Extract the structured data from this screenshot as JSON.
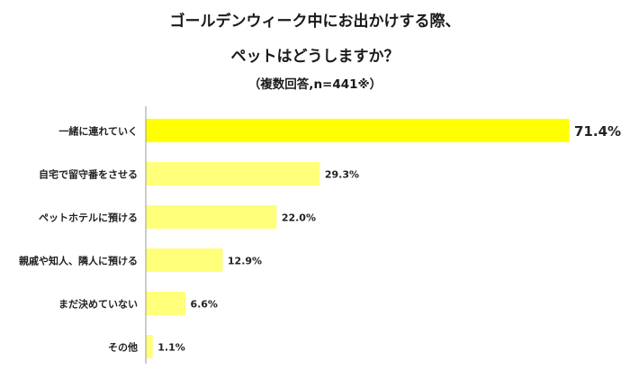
{
  "title_line1": "ゴールデンウィーク中にお出かけする際、",
  "title_line2": "ペットはどうしますか？",
  "subtitle": "（複数回答,n=441※）",
  "colors": {
    "top_bar": "#ffff00",
    "bar": "#ffff7a",
    "axis": "#999999",
    "text": "#222222"
  },
  "chart_data": {
    "type": "bar",
    "orientation": "horizontal",
    "title": "ゴールデンウィーク中にお出かけする際、ペットはどうしますか？",
    "subtitle": "（複数回答,n=441※）",
    "categories": [
      "一緒に連れていく",
      "自宅で留守番をさせる",
      "ペットホテルに預ける",
      "親戚や知人、隣人に預ける",
      "まだ決めていない",
      "その他"
    ],
    "values": [
      71.4,
      29.3,
      22.0,
      12.9,
      6.6,
      1.1
    ],
    "value_labels": [
      "71.4%",
      "29.3%",
      "22.0%",
      "12.9%",
      "6.6%",
      "1.1%"
    ],
    "unit": "%",
    "xlim": [
      0,
      71.4
    ],
    "grid": false,
    "legend": "none"
  }
}
